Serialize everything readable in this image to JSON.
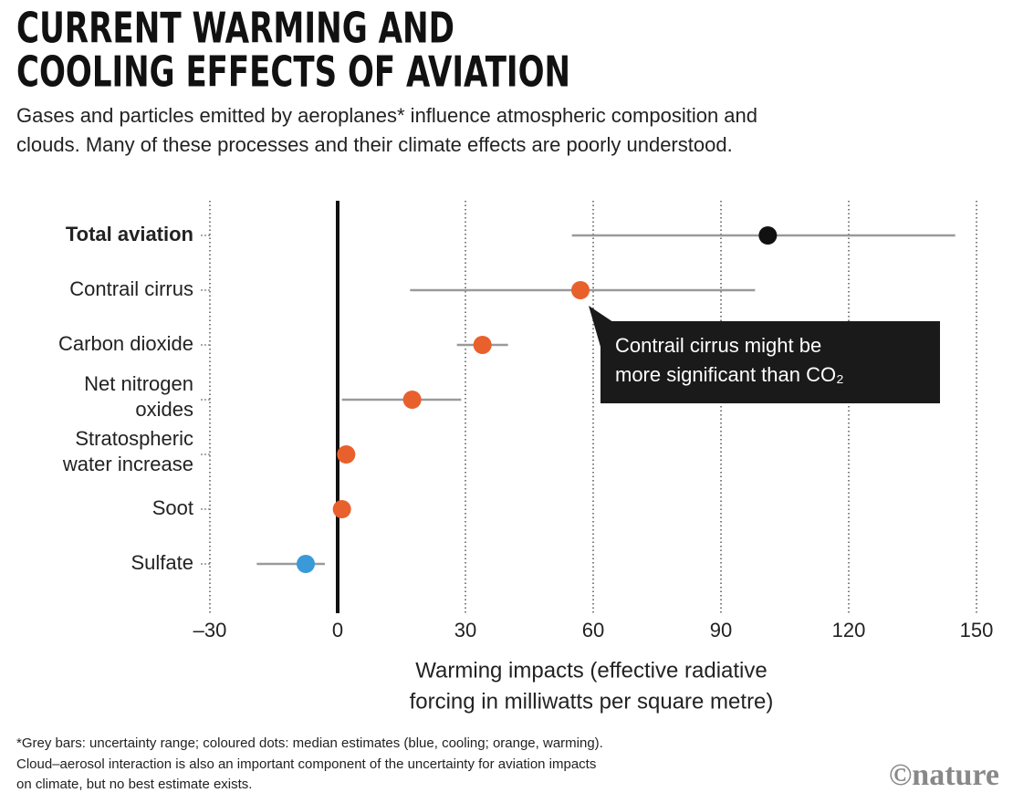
{
  "chart_data": {
    "type": "dot-range",
    "title": [
      "CURRENT WARMING AND",
      "COOLING EFFECTS OF AVIATION"
    ],
    "subtitle": [
      "Gases and particles emitted by aeroplanes* influence atmospheric composition and",
      "clouds. Many of these processes and their climate effects are poorly understood."
    ],
    "categories": [
      [
        "Total aviation"
      ],
      [
        "Contrail cirrus"
      ],
      [
        "Carbon dioxide"
      ],
      [
        "Net nitrogen",
        "oxides"
      ],
      [
        "Stratospheric",
        "water increase"
      ],
      [
        "Soot"
      ],
      [
        "Sulfate"
      ]
    ],
    "values": [
      101,
      57,
      34,
      17.5,
      2,
      1,
      -7.5
    ],
    "low": [
      55,
      17,
      28,
      1,
      1,
      0,
      -19
    ],
    "high": [
      145,
      98,
      40,
      29,
      3,
      3,
      -3
    ],
    "colors": [
      "#111111",
      "#e8602c",
      "#e8602c",
      "#e8602c",
      "#e8602c",
      "#e8602c",
      "#3a9ad9"
    ],
    "range_color": "#9a9a9a",
    "xlim": [
      -30,
      150
    ],
    "xticks": [
      {
        "value": -30,
        "label": "–30"
      },
      0,
      30,
      60,
      90,
      120,
      150
    ],
    "grid": true,
    "xlabel": [
      "Warming impacts (effective radiative",
      "forcing in milliwatts per square metre)"
    ],
    "annotation": [
      "Contrail cirrus might be",
      "more significant than CO₂"
    ],
    "footnote": [
      "*Grey bars: uncertainty range; coloured dots: median estimates (blue, cooling; orange, warming).",
      "Cloud–aerosol interaction is also an important component of the uncertainty for aviation impacts",
      "on climate, but no best estimate exists."
    ],
    "source": "©nature"
  }
}
